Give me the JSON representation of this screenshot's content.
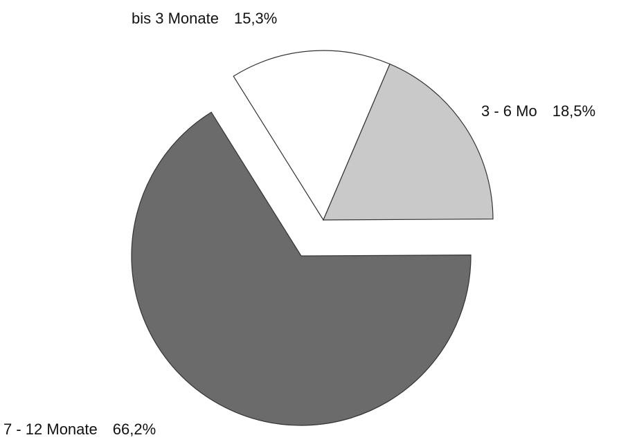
{
  "chart_data": {
    "type": "pie",
    "categories": [
      "bis 3 Monate",
      "3 - 6 Mo",
      "7 - 12 Monate"
    ],
    "values": [
      15.3,
      18.5,
      66.2
    ],
    "value_labels": [
      "15,3%",
      "18,5%",
      "66,2%"
    ],
    "colors": [
      "#ffffff",
      "#c9c9c9",
      "#6b6b6b"
    ]
  }
}
